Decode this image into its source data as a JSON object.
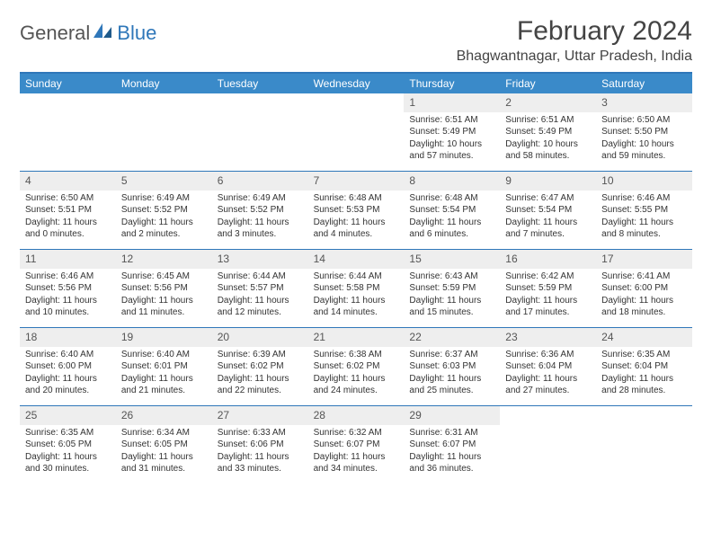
{
  "logo": {
    "part1": "General",
    "part2": "Blue"
  },
  "title": "February 2024",
  "location": "Bhagwantnagar, Uttar Pradesh, India",
  "colors": {
    "header_bg": "#3a8ac9",
    "border": "#2f77b9",
    "daynum_bg": "#eeeeee",
    "text": "#333333"
  },
  "days_of_week": [
    "Sunday",
    "Monday",
    "Tuesday",
    "Wednesday",
    "Thursday",
    "Friday",
    "Saturday"
  ],
  "weeks": [
    [
      null,
      null,
      null,
      null,
      {
        "n": "1",
        "sr": "Sunrise: 6:51 AM",
        "ss": "Sunset: 5:49 PM",
        "dl": "Daylight: 10 hours and 57 minutes."
      },
      {
        "n": "2",
        "sr": "Sunrise: 6:51 AM",
        "ss": "Sunset: 5:49 PM",
        "dl": "Daylight: 10 hours and 58 minutes."
      },
      {
        "n": "3",
        "sr": "Sunrise: 6:50 AM",
        "ss": "Sunset: 5:50 PM",
        "dl": "Daylight: 10 hours and 59 minutes."
      }
    ],
    [
      {
        "n": "4",
        "sr": "Sunrise: 6:50 AM",
        "ss": "Sunset: 5:51 PM",
        "dl": "Daylight: 11 hours and 0 minutes."
      },
      {
        "n": "5",
        "sr": "Sunrise: 6:49 AM",
        "ss": "Sunset: 5:52 PM",
        "dl": "Daylight: 11 hours and 2 minutes."
      },
      {
        "n": "6",
        "sr": "Sunrise: 6:49 AM",
        "ss": "Sunset: 5:52 PM",
        "dl": "Daylight: 11 hours and 3 minutes."
      },
      {
        "n": "7",
        "sr": "Sunrise: 6:48 AM",
        "ss": "Sunset: 5:53 PM",
        "dl": "Daylight: 11 hours and 4 minutes."
      },
      {
        "n": "8",
        "sr": "Sunrise: 6:48 AM",
        "ss": "Sunset: 5:54 PM",
        "dl": "Daylight: 11 hours and 6 minutes."
      },
      {
        "n": "9",
        "sr": "Sunrise: 6:47 AM",
        "ss": "Sunset: 5:54 PM",
        "dl": "Daylight: 11 hours and 7 minutes."
      },
      {
        "n": "10",
        "sr": "Sunrise: 6:46 AM",
        "ss": "Sunset: 5:55 PM",
        "dl": "Daylight: 11 hours and 8 minutes."
      }
    ],
    [
      {
        "n": "11",
        "sr": "Sunrise: 6:46 AM",
        "ss": "Sunset: 5:56 PM",
        "dl": "Daylight: 11 hours and 10 minutes."
      },
      {
        "n": "12",
        "sr": "Sunrise: 6:45 AM",
        "ss": "Sunset: 5:56 PM",
        "dl": "Daylight: 11 hours and 11 minutes."
      },
      {
        "n": "13",
        "sr": "Sunrise: 6:44 AM",
        "ss": "Sunset: 5:57 PM",
        "dl": "Daylight: 11 hours and 12 minutes."
      },
      {
        "n": "14",
        "sr": "Sunrise: 6:44 AM",
        "ss": "Sunset: 5:58 PM",
        "dl": "Daylight: 11 hours and 14 minutes."
      },
      {
        "n": "15",
        "sr": "Sunrise: 6:43 AM",
        "ss": "Sunset: 5:59 PM",
        "dl": "Daylight: 11 hours and 15 minutes."
      },
      {
        "n": "16",
        "sr": "Sunrise: 6:42 AM",
        "ss": "Sunset: 5:59 PM",
        "dl": "Daylight: 11 hours and 17 minutes."
      },
      {
        "n": "17",
        "sr": "Sunrise: 6:41 AM",
        "ss": "Sunset: 6:00 PM",
        "dl": "Daylight: 11 hours and 18 minutes."
      }
    ],
    [
      {
        "n": "18",
        "sr": "Sunrise: 6:40 AM",
        "ss": "Sunset: 6:00 PM",
        "dl": "Daylight: 11 hours and 20 minutes."
      },
      {
        "n": "19",
        "sr": "Sunrise: 6:40 AM",
        "ss": "Sunset: 6:01 PM",
        "dl": "Daylight: 11 hours and 21 minutes."
      },
      {
        "n": "20",
        "sr": "Sunrise: 6:39 AM",
        "ss": "Sunset: 6:02 PM",
        "dl": "Daylight: 11 hours and 22 minutes."
      },
      {
        "n": "21",
        "sr": "Sunrise: 6:38 AM",
        "ss": "Sunset: 6:02 PM",
        "dl": "Daylight: 11 hours and 24 minutes."
      },
      {
        "n": "22",
        "sr": "Sunrise: 6:37 AM",
        "ss": "Sunset: 6:03 PM",
        "dl": "Daylight: 11 hours and 25 minutes."
      },
      {
        "n": "23",
        "sr": "Sunrise: 6:36 AM",
        "ss": "Sunset: 6:04 PM",
        "dl": "Daylight: 11 hours and 27 minutes."
      },
      {
        "n": "24",
        "sr": "Sunrise: 6:35 AM",
        "ss": "Sunset: 6:04 PM",
        "dl": "Daylight: 11 hours and 28 minutes."
      }
    ],
    [
      {
        "n": "25",
        "sr": "Sunrise: 6:35 AM",
        "ss": "Sunset: 6:05 PM",
        "dl": "Daylight: 11 hours and 30 minutes."
      },
      {
        "n": "26",
        "sr": "Sunrise: 6:34 AM",
        "ss": "Sunset: 6:05 PM",
        "dl": "Daylight: 11 hours and 31 minutes."
      },
      {
        "n": "27",
        "sr": "Sunrise: 6:33 AM",
        "ss": "Sunset: 6:06 PM",
        "dl": "Daylight: 11 hours and 33 minutes."
      },
      {
        "n": "28",
        "sr": "Sunrise: 6:32 AM",
        "ss": "Sunset: 6:07 PM",
        "dl": "Daylight: 11 hours and 34 minutes."
      },
      {
        "n": "29",
        "sr": "Sunrise: 6:31 AM",
        "ss": "Sunset: 6:07 PM",
        "dl": "Daylight: 11 hours and 36 minutes."
      },
      null,
      null
    ]
  ]
}
